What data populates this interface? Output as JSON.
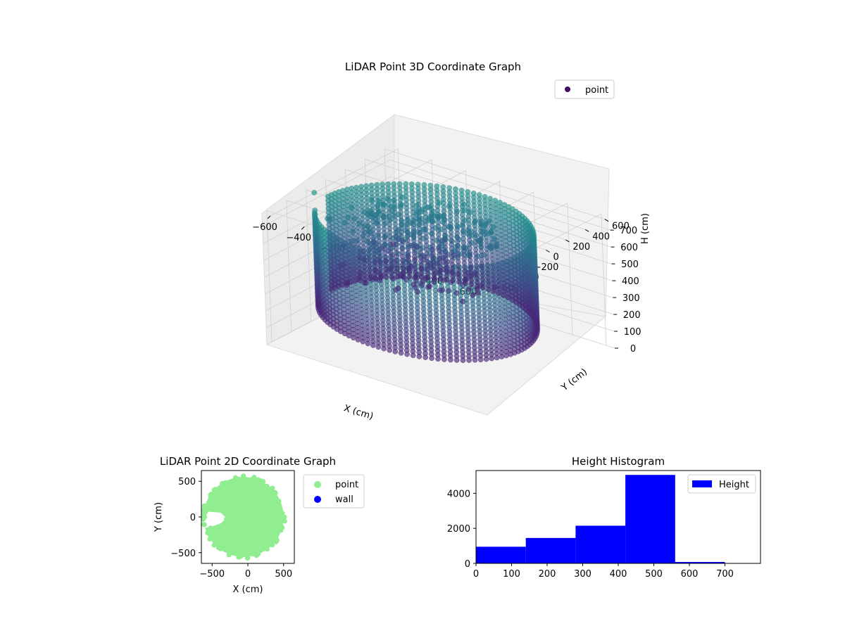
{
  "chart_data": [
    {
      "type": "scatter",
      "subtype": "3d",
      "title": "LiDAR Point 3D Coordinate Graph",
      "xlabel": "X (cm)",
      "ylabel": "Y (cm)",
      "zlabel": "H (cm)",
      "xlim": [
        -650,
        650
      ],
      "ylim": [
        -650,
        650
      ],
      "zlim": [
        780,
        0
      ],
      "x_ticks": [
        -600,
        -400,
        -200,
        0,
        200,
        400,
        600
      ],
      "y_ticks": [
        -600,
        -400,
        -200,
        0,
        200,
        400,
        600
      ],
      "z_ticks": [
        0,
        100,
        200,
        300,
        400,
        500,
        600,
        700
      ],
      "z_inverted": true,
      "grid": true,
      "legend": {
        "position": "top-right",
        "entries": [
          {
            "label": "point",
            "color": "#440d62"
          }
        ]
      },
      "colormap": "viridis",
      "shape_description": "ring of points, radius ~560 cm, heights ~150-700 cm",
      "ring": {
        "center": [
          -60,
          0
        ],
        "radius": 560,
        "h_min": 150,
        "h_max": 700
      },
      "outliers": [
        {
          "x": -650,
          "y": 650,
          "h": 200
        },
        {
          "x": -650,
          "y": -120,
          "h": 740
        },
        {
          "x": -620,
          "y": -20,
          "h": 560
        },
        {
          "x": -600,
          "y": -80,
          "h": 590
        },
        {
          "x": -280,
          "y": 380,
          "h": 150
        },
        {
          "x": -250,
          "y": 300,
          "h": 230
        }
      ]
    },
    {
      "type": "scatter",
      "subtype": "2d",
      "title": "LiDAR Point 2D Coordinate Graph",
      "xlabel": "X (cm)",
      "ylabel": "Y (cm)",
      "xlim": [
        -650,
        650
      ],
      "ylim": [
        -650,
        650
      ],
      "x_ticks": [
        -500,
        0,
        500
      ],
      "y_ticks": [
        -500,
        0,
        500
      ],
      "grid": false,
      "legend": {
        "position": "right",
        "entries": [
          {
            "label": "point",
            "color": "#90ee90"
          },
          {
            "label": "wall",
            "color": "#0000ff"
          }
        ]
      },
      "disk": {
        "center": [
          -60,
          0
        ],
        "radius": 560
      }
    },
    {
      "type": "bar",
      "subtype": "histogram",
      "title": "Height Histogram",
      "series": [
        {
          "name": "Height",
          "color": "#0000ff",
          "bins": [
            0,
            140,
            280,
            420,
            560,
            700
          ],
          "values": [
            950,
            1450,
            2150,
            5050,
            80
          ]
        }
      ],
      "xlim": [
        0,
        800
      ],
      "ylim": [
        0,
        5300
      ],
      "x_ticks": [
        0,
        100,
        200,
        300,
        400,
        500,
        600,
        700
      ],
      "y_ticks": [
        0,
        2000,
        4000
      ],
      "grid": false,
      "legend": {
        "position": "top-right"
      }
    }
  ]
}
